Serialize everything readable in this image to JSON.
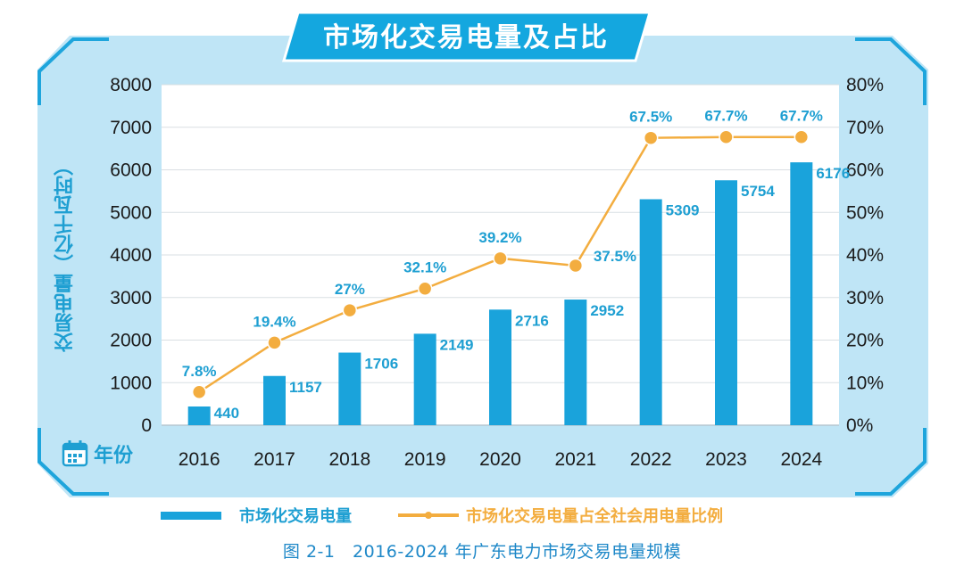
{
  "title": "市场化交易电量及占比",
  "y_axis_label": "交易电量（亿千瓦时）",
  "x_axis_label": "年份",
  "caption": "图 2-1　2016-2024 年广东电力市场交易电量规模",
  "icons": [
    "calendar-icon"
  ],
  "colors": {
    "bar": "#1aa3db",
    "line": "#f3ad3f",
    "frame": "#bfe5f6",
    "accent": "#1e9fd2",
    "title_tab": "#14a7df"
  },
  "chart_data": {
    "type": "bar",
    "categories": [
      "2016",
      "2017",
      "2018",
      "2019",
      "2020",
      "2021",
      "2022",
      "2023",
      "2024"
    ],
    "series": [
      {
        "name": "市场化交易电量",
        "type": "bar",
        "axis": "left",
        "values": [
          440,
          1157,
          1706,
          2149,
          2716,
          2952,
          5309,
          5754,
          6176
        ],
        "labels": [
          "440",
          "1157",
          "1706",
          "2149",
          "2716",
          "2952",
          "5309",
          "5754",
          "6176"
        ]
      },
      {
        "name": "市场化交易电量占全社会用电量比例",
        "type": "line",
        "axis": "right",
        "values": [
          7.8,
          19.4,
          27,
          32.1,
          39.2,
          37.5,
          67.5,
          67.7,
          67.7
        ],
        "labels": [
          "7.8%",
          "19.4%",
          "27%",
          "32.1%",
          "39.2%",
          "37.5%",
          "67.5%",
          "67.7%",
          "67.7%"
        ]
      }
    ],
    "ylim": [
      0,
      8000
    ],
    "yticks": [
      "0",
      "1000",
      "2000",
      "3000",
      "4000",
      "5000",
      "6000",
      "7000",
      "8000"
    ],
    "y2lim": [
      0,
      80
    ],
    "y2ticks": [
      "0%",
      "10%",
      "20%",
      "30%",
      "40%",
      "50%",
      "60%",
      "70%",
      "80%"
    ],
    "grid": true,
    "legend_position": "bottom"
  }
}
